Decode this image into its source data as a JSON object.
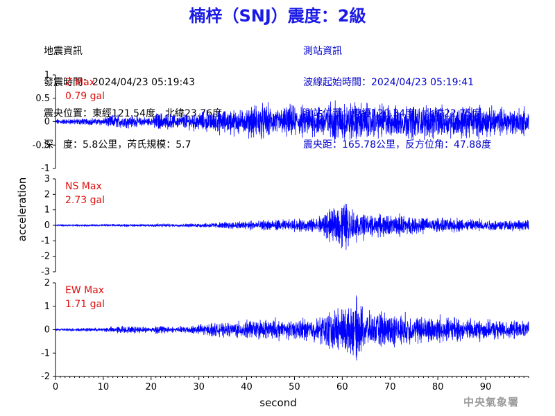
{
  "header": {
    "title": "楠梓（SNJ）震度：2級",
    "quake_info": [
      "地震資訊",
      "發震時間：2024/04/23 05:19:43",
      "震央位置：東經121.54度，北緯23.76度",
      "深　度：5.8公里，芮氏規模：5.7"
    ],
    "station_info": [
      "測站資訊",
      "波線起始時間：2024/04/23 05:19:41",
      "測站位置：東經120.34度，北緯22.75度",
      "震央距：165.78公里，反方位角：47.88度"
    ]
  },
  "watermark": "中央氣象署",
  "colors": {
    "trace": "#0000ff",
    "max_label": "#e01010",
    "title": "#1a1ae6",
    "station_info": "#0000cc"
  },
  "chart_data": {
    "type": "line",
    "xlabel": "second",
    "ylabel": "acceleration",
    "xlim": [
      0,
      99
    ],
    "x_ticks": [
      0,
      10,
      20,
      30,
      40,
      50,
      60,
      70,
      80,
      90
    ],
    "panels": [
      {
        "name": "Z",
        "max_label": "Z Max",
        "max_value": "0.79 gal",
        "ylim": [
          -1,
          1
        ],
        "y_ticks": [
          1,
          0.5,
          0,
          -0.5,
          -1
        ],
        "y_tick_labels": [
          "1",
          "0.5",
          "0",
          "-0.5",
          "-1"
        ],
        "envelope": {
          "t": [
            0,
            10,
            12,
            15,
            20,
            21,
            25,
            30,
            35,
            40,
            43,
            45,
            50,
            55,
            60,
            65,
            70,
            75,
            80,
            85,
            90,
            95,
            99
          ],
          "amp": [
            0.08,
            0.12,
            0.22,
            0.2,
            0.12,
            0.3,
            0.2,
            0.3,
            0.35,
            0.4,
            0.62,
            0.45,
            0.5,
            0.48,
            0.62,
            0.55,
            0.5,
            0.55,
            0.48,
            0.5,
            0.45,
            0.42,
            0.45
          ]
        }
      },
      {
        "name": "NS",
        "max_label": "NS Max",
        "max_value": "2.73 gal",
        "ylim": [
          -3,
          3
        ],
        "y_ticks": [
          3,
          2,
          1,
          0,
          -1,
          -2,
          -3
        ],
        "y_tick_labels": [
          "3",
          "2",
          "1",
          "0",
          "-1",
          "-2",
          "-3"
        ],
        "envelope": {
          "t": [
            0,
            10,
            20,
            21,
            25,
            30,
            35,
            40,
            45,
            50,
            55,
            57,
            60,
            62,
            65,
            70,
            75,
            80,
            85,
            90,
            95,
            99
          ],
          "amp": [
            0.08,
            0.1,
            0.12,
            0.22,
            0.12,
            0.2,
            0.3,
            0.45,
            0.5,
            0.5,
            0.8,
            1.2,
            2.5,
            1.6,
            1.1,
            1.0,
            0.8,
            0.7,
            0.6,
            0.55,
            0.5,
            0.5
          ]
        }
      },
      {
        "name": "EW",
        "max_label": "EW Max",
        "max_value": "1.71 gal",
        "ylim": [
          -2,
          2
        ],
        "y_ticks": [
          2,
          1,
          0,
          -1,
          -2
        ],
        "y_tick_labels": [
          "2",
          "1",
          "0",
          "-1",
          "-2"
        ],
        "envelope": {
          "t": [
            0,
            10,
            14,
            20,
            21,
            25,
            30,
            35,
            40,
            45,
            50,
            55,
            58,
            60,
            63,
            65,
            70,
            75,
            80,
            85,
            90,
            95,
            99
          ],
          "amp": [
            0.08,
            0.12,
            0.25,
            0.15,
            0.3,
            0.15,
            0.35,
            0.4,
            0.55,
            0.65,
            0.6,
            0.8,
            1.3,
            1.5,
            1.6,
            1.1,
            1.0,
            0.9,
            0.8,
            0.7,
            0.6,
            0.55,
            0.5
          ]
        }
      }
    ]
  }
}
